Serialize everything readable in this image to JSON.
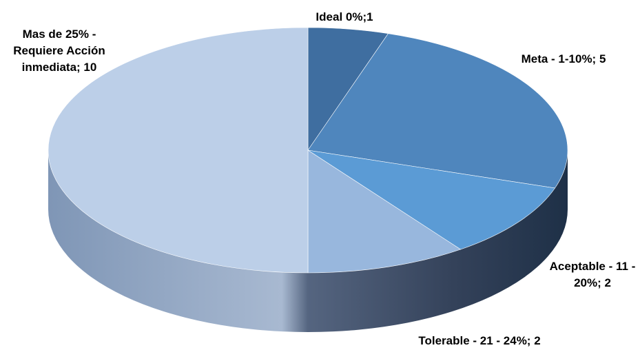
{
  "chart_data": {
    "type": "pie",
    "title": "",
    "categories": [
      "Ideal 0%",
      "Meta  - 1-10%",
      "Aceptable - 11 - 20%",
      "Tolerable - 21 - 24%",
      "Mas de 25% - Requiere Acción inmediata"
    ],
    "values": [
      1,
      5,
      2,
      2,
      10
    ],
    "colors": [
      "#3f6ea0",
      "#4f86bd",
      "#5b9bd5",
      "#98b7dd",
      "#bccfe8"
    ],
    "labels": [
      {
        "lines": [
          "Ideal 0%;1"
        ]
      },
      {
        "lines": [
          "Meta  - 1-10%; 5"
        ]
      },
      {
        "lines": [
          "Aceptable - 11 -",
          "20%; 2"
        ]
      },
      {
        "lines": [
          "Tolerable - 21 - 24%; 2"
        ]
      },
      {
        "lines": [
          "Mas de 25% -",
          "Requiere Acción",
          "inmediata; 10"
        ]
      }
    ],
    "style": "3d-pie",
    "legend": "none"
  }
}
